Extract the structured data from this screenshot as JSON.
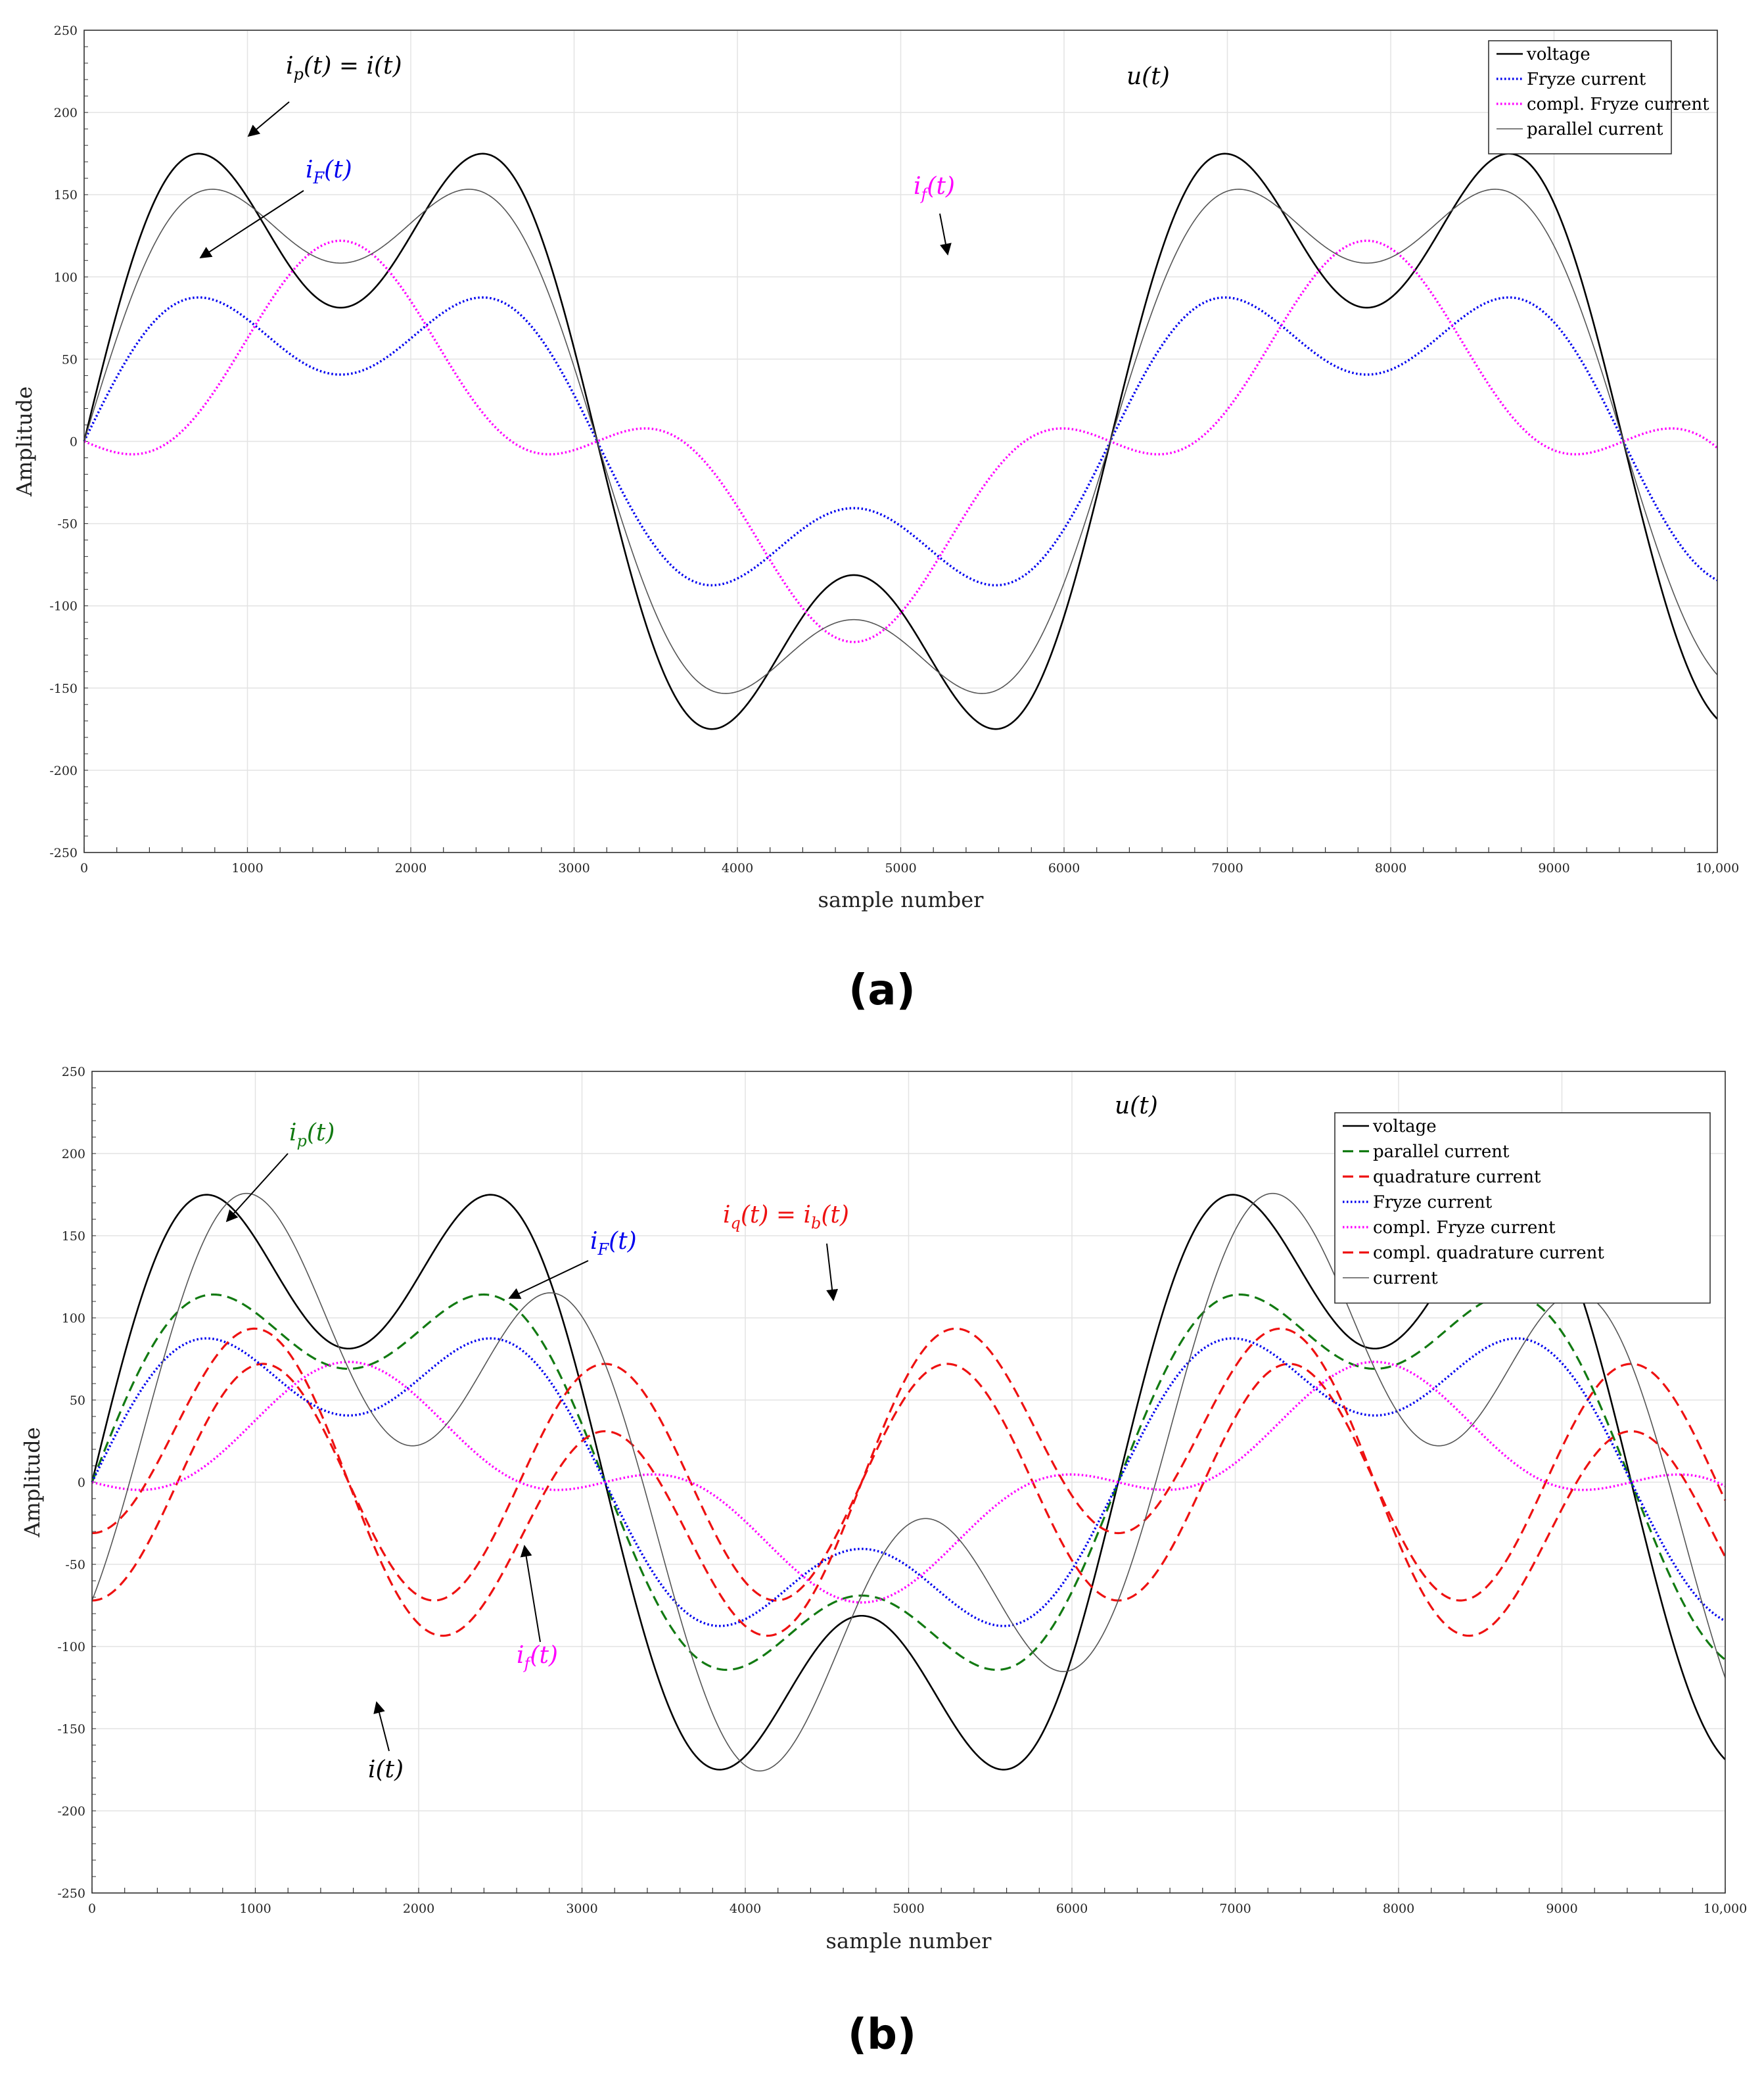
{
  "colors": {
    "voltage": "#000000",
    "fryze": "#0000ee",
    "compl_fryze": "#ff00ff",
    "parallel_a": "#555555",
    "parallel_b": "#127a12",
    "quadrature": "#ee1111",
    "current": "#555555",
    "grid": "#e3e3e3"
  },
  "chart_data": [
    {
      "panel": "(a)",
      "type": "line",
      "xlabel": "sample number",
      "ylabel": "Amplitude",
      "xlim": [
        0,
        10000
      ],
      "ylim": [
        -250,
        250
      ],
      "xticks": [
        0,
        1000,
        2000,
        3000,
        4000,
        5000,
        6000,
        7000,
        8000,
        9000,
        10000
      ],
      "xtick_labels": [
        "0",
        "1000",
        "2000",
        "3000",
        "4000",
        "5000",
        "6000",
        "7000",
        "8000",
        "9000",
        "10,000"
      ],
      "yticks": [
        -250,
        -200,
        -150,
        -100,
        -50,
        0,
        50,
        100,
        150,
        200,
        250
      ],
      "ytick_labels": [
        "-250",
        "-200",
        "-150",
        "-100",
        "-50",
        "0",
        "50",
        "100",
        "150",
        "200",
        "250"
      ],
      "legend_position": "top-right",
      "series": [
        {
          "name": "voltage",
          "color_key": "voltage",
          "dash": "solid",
          "width": 2.6,
          "components": [
            {
              "amp": 162.6,
              "harmonic": 1,
              "phase": 0
            },
            {
              "amp": 81.3,
              "harmonic": 3,
              "phase": 0
            }
          ]
        },
        {
          "name": "Fryze current",
          "color_key": "fryze",
          "dash": "dotted",
          "width": 3.5,
          "components": [
            {
              "amp": 81.3,
              "harmonic": 1,
              "phase": 0
            },
            {
              "amp": 40.7,
              "harmonic": 3,
              "phase": 0
            }
          ]
        },
        {
          "name": "compl. Fryze current",
          "color_key": "compl_fryze",
          "dash": "dotted",
          "width": 3.5,
          "components": [
            {
              "amp": 81.3,
              "harmonic": 1,
              "phase": 0
            },
            {
              "amp": -40.7,
              "harmonic": 3,
              "phase": 0
            }
          ]
        },
        {
          "name": "parallel current",
          "color_key": "parallel_a",
          "dash": "solid",
          "width": 1.6,
          "components": [
            {
              "amp": 162.6,
              "harmonic": 1,
              "phase": 0
            },
            {
              "amp": 54.2,
              "harmonic": 3,
              "phase": 0
            }
          ]
        }
      ],
      "annotations": [
        {
          "text": "ip(t) = i(t)",
          "color_key": "voltage"
        },
        {
          "text": "u(t)",
          "color_key": "voltage"
        },
        {
          "text": "iF(t)",
          "color_key": "fryze"
        },
        {
          "text": "if(t)",
          "color_key": "compl_fryze"
        }
      ]
    },
    {
      "panel": "(b)",
      "type": "line",
      "xlabel": "sample number",
      "ylabel": "Amplitude",
      "xlim": [
        0,
        10000
      ],
      "ylim": [
        -250,
        250
      ],
      "xticks": [
        0,
        1000,
        2000,
        3000,
        4000,
        5000,
        6000,
        7000,
        8000,
        9000,
        10000
      ],
      "xtick_labels": [
        "0",
        "1000",
        "2000",
        "3000",
        "4000",
        "5000",
        "6000",
        "7000",
        "8000",
        "9000",
        "10,000"
      ],
      "yticks": [
        -250,
        -200,
        -150,
        -100,
        -50,
        0,
        50,
        100,
        150,
        200,
        250
      ],
      "ytick_labels": [
        "-250",
        "-200",
        "-150",
        "-100",
        "-50",
        "0",
        "50",
        "100",
        "150",
        "200",
        "250"
      ],
      "legend_position": "top-right",
      "series": [
        {
          "name": "voltage",
          "color_key": "voltage",
          "dash": "solid",
          "width": 2.6,
          "components": [
            {
              "amp": 162.6,
              "harmonic": 1,
              "phase": 0
            },
            {
              "amp": 81.3,
              "harmonic": 3,
              "phase": 0
            }
          ]
        },
        {
          "name": "parallel current",
          "color_key": "parallel_b",
          "dash": "dashed",
          "width": 3.2,
          "components": [
            {
              "amp": 115.0,
              "harmonic": 1,
              "phase": 0
            },
            {
              "amp": 46.0,
              "harmonic": 3,
              "phase": 0
            }
          ]
        },
        {
          "name": "quadrature current",
          "color_key": "quadrature",
          "dash": "dashed",
          "width": 3.2,
          "components": [
            {
              "amp": 72.0,
              "harmonic": 3,
              "phase": -1.5708
            }
          ]
        },
        {
          "name": "Fryze current",
          "color_key": "fryze",
          "dash": "dotted",
          "width": 3.5,
          "components": [
            {
              "amp": 81.3,
              "harmonic": 1,
              "phase": 0
            },
            {
              "amp": 40.7,
              "harmonic": 3,
              "phase": 0
            }
          ]
        },
        {
          "name": "compl. Fryze current",
          "color_key": "compl_fryze",
          "dash": "dotted",
          "width": 3.5,
          "components": [
            {
              "amp": 48.8,
              "harmonic": 1,
              "phase": 0
            },
            {
              "amp": -24.4,
              "harmonic": 3,
              "phase": 0
            }
          ]
        },
        {
          "name": "compl. quadrature current",
          "color_key": "quadrature",
          "dash": "dashed",
          "width": 3.2,
          "components": [
            {
              "amp": -41.0,
              "harmonic": 1,
              "phase": -1.5708
            },
            {
              "amp": 72.0,
              "harmonic": 3,
              "phase": -1.5708
            }
          ]
        },
        {
          "name": "current",
          "color_key": "current",
          "dash": "solid",
          "width": 1.6,
          "components": [
            {
              "amp": 115.0,
              "harmonic": 1,
              "phase": 0
            },
            {
              "amp": 46.0,
              "harmonic": 3,
              "phase": 0
            },
            {
              "amp": 72.0,
              "harmonic": 3,
              "phase": -1.5708
            }
          ]
        }
      ],
      "annotations": [
        {
          "text": "u(t)",
          "color_key": "voltage"
        },
        {
          "text": "ip(t)",
          "color_key": "parallel_b"
        },
        {
          "text": "iF(t)",
          "color_key": "fryze"
        },
        {
          "text": "iq(t) = ib(t)",
          "color_key": "quadrature"
        },
        {
          "text": "if(t)",
          "color_key": "compl_fryze"
        },
        {
          "text": "i(t)",
          "color_key": "voltage"
        }
      ]
    }
  ],
  "panels": {
    "a": {
      "label": "(a)"
    },
    "b": {
      "label": "(b)"
    }
  }
}
